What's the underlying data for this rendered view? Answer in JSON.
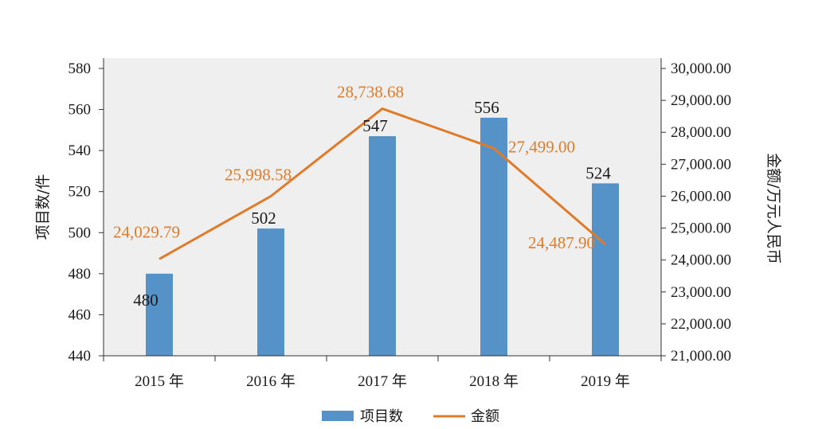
{
  "chart_data": {
    "type": "bar",
    "categories": [
      "2015 年",
      "2016 年",
      "2017 年",
      "2018 年",
      "2019 年"
    ],
    "series": [
      {
        "name": "项目数",
        "type": "bar",
        "axis": "left",
        "color": "#5592c8",
        "values": [
          480,
          502,
          547,
          556,
          524
        ],
        "labels": [
          "480",
          "502",
          "547",
          "556",
          "524"
        ]
      },
      {
        "name": "金额",
        "type": "line",
        "axis": "right",
        "color": "#e07b29",
        "values": [
          24029.79,
          25998.58,
          28738.68,
          27499.0,
          24487.9
        ],
        "labels": [
          "24,029.79",
          "25,998.58",
          "28,738.68",
          "27,499.00",
          "24,487.90"
        ]
      }
    ],
    "y_left": {
      "label": "项目数/件",
      "range": [
        440,
        580
      ],
      "ticks": [
        "440",
        "460",
        "480",
        "500",
        "520",
        "540",
        "560",
        "580"
      ]
    },
    "y_right": {
      "label": "金额/万元人民币",
      "range": [
        21000,
        30000
      ],
      "ticks": [
        "21,000.00",
        "22,000.00",
        "23,000.00",
        "24,000.00",
        "25,000.00",
        "26,000.00",
        "27,000.00",
        "28,000.00",
        "29,000.00",
        "30,000.00"
      ]
    },
    "legend": {
      "position": "bottom",
      "items": [
        "项目数",
        "金额"
      ]
    },
    "grid": false,
    "plot_background": "#efefef"
  }
}
